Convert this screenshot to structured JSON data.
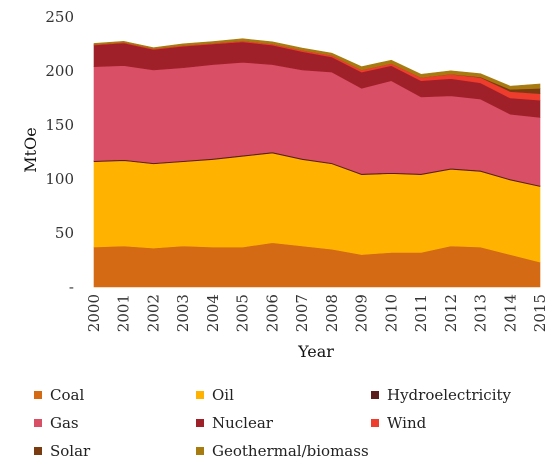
{
  "chart_data": {
    "type": "area",
    "stacked": true,
    "title": "",
    "xlabel": "Year",
    "ylabel": "MtOe",
    "ylim": [
      0,
      250
    ],
    "yticks": [
      0,
      50,
      100,
      150,
      200,
      250
    ],
    "ytick_labels": [
      "-",
      "50",
      "100",
      "150",
      "200",
      "250"
    ],
    "x": [
      "2000",
      "2001",
      "2002",
      "2003",
      "2004",
      "2005",
      "2006",
      "2007",
      "2008",
      "2009",
      "2010",
      "2011",
      "2012",
      "2013",
      "2014",
      "2015"
    ],
    "grid": false,
    "legend_position": "bottom",
    "series": [
      {
        "name": "Coal",
        "color": "#D46A13",
        "values": [
          37,
          38,
          36,
          38,
          37,
          37,
          41,
          38,
          35,
          30,
          32,
          32,
          38,
          37,
          30,
          23
        ]
      },
      {
        "name": "Oil",
        "color": "#FFB300",
        "values": [
          79,
          79,
          78,
          78,
          81,
          84,
          83,
          80,
          79,
          74,
          73,
          72,
          71,
          70,
          69,
          70
        ]
      },
      {
        "name": "Hydroelectricity",
        "color": "#5A1E1E",
        "values": [
          1,
          1,
          1,
          1,
          1,
          1,
          1,
          1,
          1,
          1,
          1,
          1,
          1,
          1,
          1,
          1
        ]
      },
      {
        "name": "Gas",
        "color": "#D94F66",
        "values": [
          87,
          87,
          86,
          86,
          87,
          86,
          81,
          82,
          84,
          79,
          85,
          71,
          67,
          66,
          60,
          63
        ]
      },
      {
        "name": "Nuclear",
        "color": "#A0202A",
        "values": [
          20,
          21,
          19,
          20,
          19,
          19,
          18,
          17,
          14,
          15,
          14,
          15,
          16,
          15,
          15,
          16
        ]
      },
      {
        "name": "Wind",
        "color": "#EE3C2D",
        "values": [
          0.5,
          0.5,
          0.6,
          0.7,
          0.8,
          0.9,
          1,
          1.2,
          1.5,
          2,
          2,
          3,
          4,
          5,
          6,
          6
        ]
      },
      {
        "name": "Solar",
        "color": "#7A3B10",
        "values": [
          0,
          0,
          0,
          0,
          0,
          0,
          0,
          0,
          0,
          0,
          0,
          0,
          0.2,
          0.5,
          2,
          5
        ]
      },
      {
        "name": "Geothermal/biomass",
        "color": "#A87B10",
        "values": [
          1,
          1,
          1,
          1.5,
          1.5,
          2,
          2,
          2,
          2,
          3,
          3,
          3,
          3,
          3,
          3,
          4
        ]
      }
    ]
  }
}
